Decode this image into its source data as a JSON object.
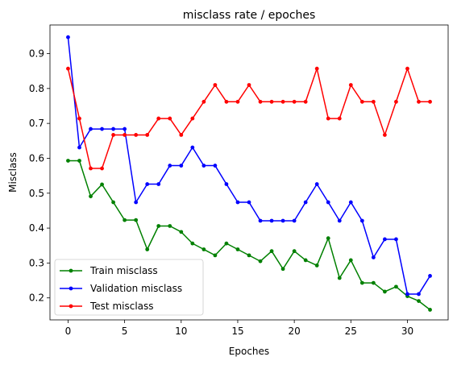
{
  "chart_data": {
    "type": "line",
    "title": "misclass rate / epoches",
    "xlabel": "Epoches",
    "ylabel": "Misclass",
    "xlim": [
      -1.6,
      33.6
    ],
    "ylim": [
      0.137,
      0.982
    ],
    "xticks": [
      0,
      5,
      10,
      15,
      20,
      25,
      30
    ],
    "yticks": [
      0.2,
      0.3,
      0.4,
      0.5,
      0.6,
      0.7,
      0.8,
      0.9
    ],
    "grid": false,
    "legend_position": "lower-left",
    "x": [
      0,
      1,
      2,
      3,
      4,
      5,
      6,
      7,
      8,
      9,
      10,
      11,
      12,
      13,
      14,
      15,
      16,
      17,
      18,
      19,
      20,
      21,
      22,
      23,
      24,
      25,
      26,
      27,
      28,
      29,
      30,
      31,
      32
    ],
    "series": [
      {
        "name": "Train misclass",
        "color": "#008000",
        "values": [
          0.593,
          0.593,
          0.491,
          0.525,
          0.474,
          0.423,
          0.423,
          0.339,
          0.406,
          0.406,
          0.389,
          0.356,
          0.339,
          0.322,
          0.356,
          0.339,
          0.322,
          0.305,
          0.334,
          0.283,
          0.334,
          0.308,
          0.293,
          0.371,
          0.257,
          0.308,
          0.243,
          0.243,
          0.218,
          0.232,
          0.205,
          0.191,
          0.166
        ]
      },
      {
        "name": "Validation misclass",
        "color": "#0000ff",
        "values": [
          0.947,
          0.631,
          0.684,
          0.684,
          0.684,
          0.684,
          0.474,
          0.526,
          0.526,
          0.579,
          0.579,
          0.631,
          0.579,
          0.579,
          0.526,
          0.474,
          0.474,
          0.421,
          0.421,
          0.421,
          0.421,
          0.474,
          0.526,
          0.474,
          0.421,
          0.474,
          0.421,
          0.316,
          0.368,
          0.368,
          0.211,
          0.211,
          0.263
        ]
      },
      {
        "name": "Test misclass",
        "color": "#ff0000",
        "values": [
          0.857,
          0.714,
          0.571,
          0.571,
          0.667,
          0.667,
          0.667,
          0.667,
          0.714,
          0.714,
          0.667,
          0.714,
          0.762,
          0.81,
          0.762,
          0.762,
          0.81,
          0.762,
          0.762,
          0.762,
          0.762,
          0.762,
          0.857,
          0.714,
          0.714,
          0.81,
          0.762,
          0.762,
          0.667,
          0.762,
          0.857,
          0.762,
          0.762
        ]
      }
    ]
  }
}
